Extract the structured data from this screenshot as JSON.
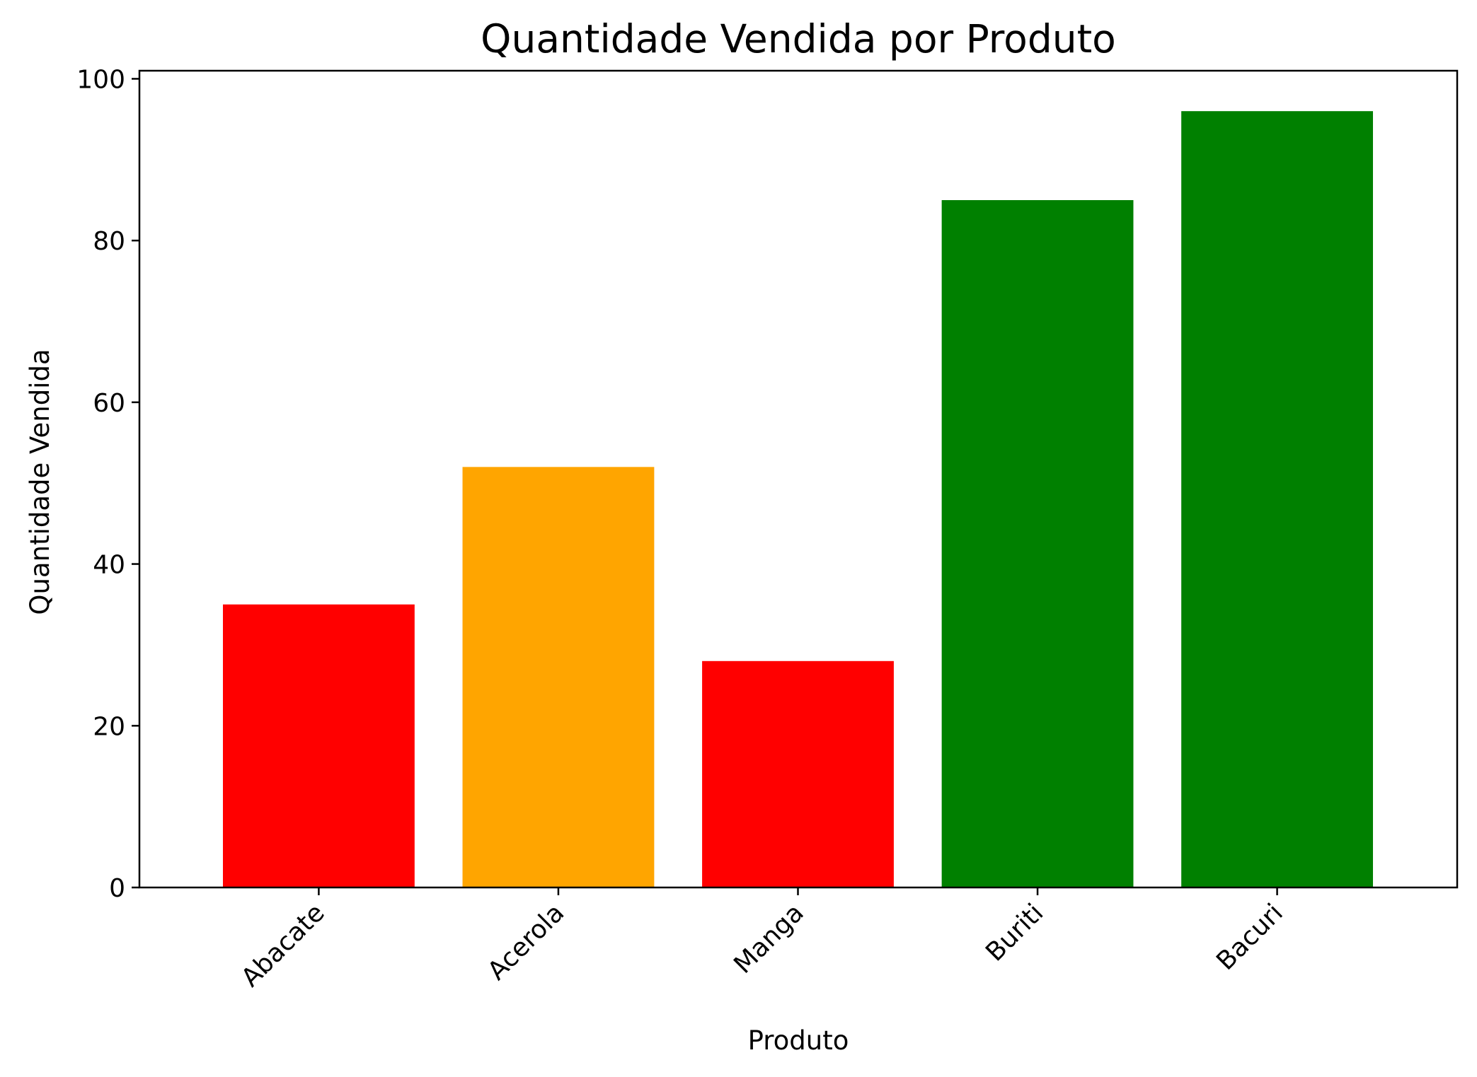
{
  "chart_data": {
    "type": "bar",
    "title": "Quantidade Vendida por Produto",
    "xlabel": "Produto",
    "ylabel": "Quantidade Vendida",
    "categories": [
      "Abacate",
      "Acerola",
      "Manga",
      "Buriti",
      "Bacuri"
    ],
    "values": [
      35,
      52,
      28,
      85,
      96
    ],
    "bar_colors": [
      "#ff0000",
      "#ffa500",
      "#ff0000",
      "#008000",
      "#008000"
    ],
    "ylim": [
      0,
      101
    ],
    "yticks": [
      0,
      20,
      40,
      60,
      80,
      100
    ],
    "ytick_labels": [
      "0",
      "20",
      "40",
      "60",
      "80",
      "100"
    ],
    "grid": false,
    "legend": "none",
    "xtick_rotation_deg": 45
  }
}
